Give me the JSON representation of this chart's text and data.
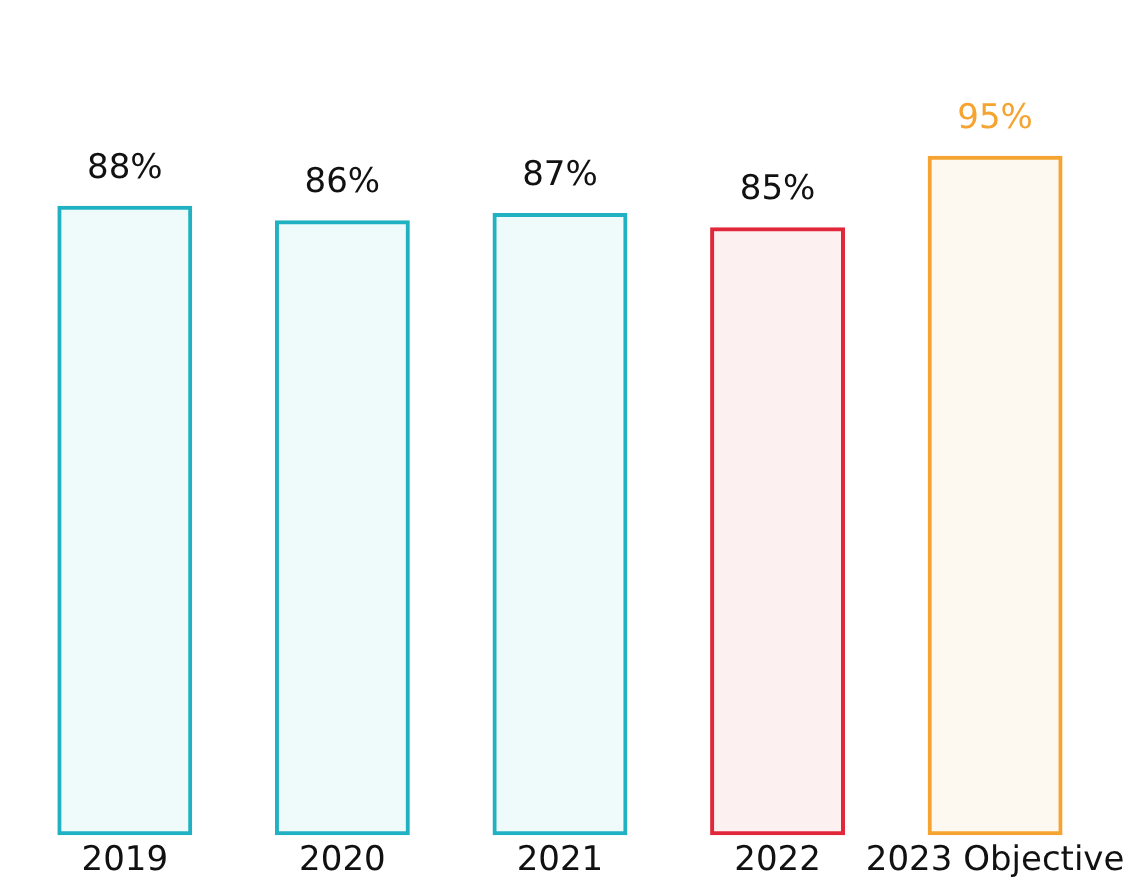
{
  "chart_data": {
    "type": "bar",
    "categories": [
      "2019",
      "2020",
      "2021",
      "2022",
      "2023 Objective"
    ],
    "values": [
      88,
      86,
      87,
      85,
      95
    ],
    "value_labels": [
      "88%",
      "86%",
      "87%",
      "85%",
      "95%"
    ],
    "colors": [
      "#20b2c2",
      "#20b2c2",
      "#20b2c2",
      "#e0283a",
      "#f5a431"
    ],
    "grid": false,
    "legend": false
  }
}
